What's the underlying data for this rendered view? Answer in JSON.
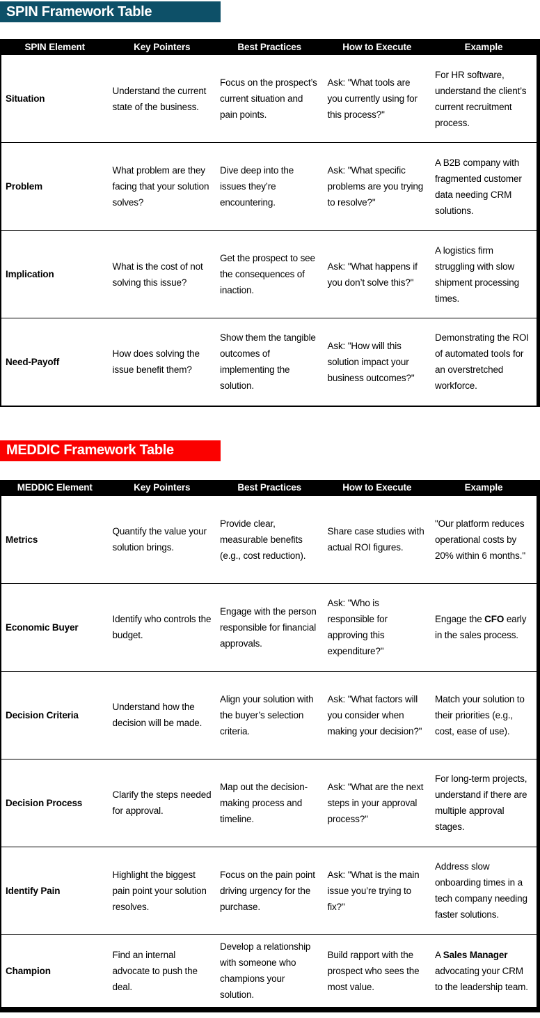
{
  "colors": {
    "spin_title_bg": "#0d5068",
    "meddic_title_bg": "#fb0100",
    "table_header_bg": "#000000",
    "table_header_text": "#ffffff",
    "body_text": "#000000"
  },
  "spin": {
    "title": "SPIN Framework Table",
    "headers": [
      "SPIN Element",
      "Key Pointers",
      "Best Practices",
      "How to Execute",
      "Example"
    ],
    "rows": [
      {
        "element": "Situation",
        "pointers": "Understand the current state of the business.",
        "practices": "Focus on the prospect’s current situation and pain points.",
        "execute": "Ask: \"What tools are you currently using for this process?\"",
        "example": "For HR software, understand the client’s current recruitment process."
      },
      {
        "element": "Problem",
        "pointers": "What problem are they facing that your solution solves?",
        "practices": "Dive deep into the issues they’re encountering.",
        "execute": "Ask: \"What specific problems are you trying to resolve?\"",
        "example": "A B2B company with fragmented customer data needing CRM solutions."
      },
      {
        "element": "Implication",
        "pointers": "What is the cost of not solving this issue?",
        "practices": "Get the prospect to see the consequences of inaction.",
        "execute": "Ask: \"What happens if you don’t solve this?\"",
        "example": "A logistics firm struggling with slow shipment processing times."
      },
      {
        "element": "Need-Payoff",
        "pointers": "How does solving the issue benefit them?",
        "practices": "Show them the tangible outcomes of implementing the solution.",
        "execute": "Ask: \"How will this solution impact your business outcomes?\"",
        "example": "Demonstrating the ROI of automated tools for an overstretched workforce."
      }
    ]
  },
  "meddic": {
    "title": "MEDDIC Framework Table",
    "headers": [
      "MEDDIC Element",
      "Key Pointers",
      "Best Practices",
      "How to Execute",
      "Example"
    ],
    "rows": [
      {
        "element": "Metrics",
        "pointers": "Quantify the value your solution brings.",
        "practices": "Provide clear, measurable benefits (e.g., cost reduction).",
        "execute": "Share case studies with actual ROI figures.",
        "example": "\"Our platform reduces operational costs by 20% within 6 months.\""
      },
      {
        "element": "Economic Buyer",
        "pointers": "Identify who controls the budget.",
        "practices": "Engage with the person responsible for financial approvals.",
        "execute": "Ask: \"Who is responsible for approving this expenditure?\"",
        "example_rich": [
          {
            "text": "Engage the "
          },
          {
            "text": "CFO",
            "bold": true
          },
          {
            "text": " early in the sales process."
          }
        ]
      },
      {
        "element": "Decision Criteria",
        "pointers": "Understand how the decision will be made.",
        "practices": "Align your solution with the buyer’s selection criteria.",
        "execute": "Ask: \"What factors will you consider when making your decision?\"",
        "example": "Match your solution to their priorities (e.g., cost, ease of use)."
      },
      {
        "element": "Decision Process",
        "pointers": "Clarify the steps needed for approval.",
        "practices": "Map out the decision-making process and timeline.",
        "execute": "Ask: \"What are the next steps in your approval process?\"",
        "example": "For long-term projects, understand if there are multiple approval stages."
      },
      {
        "element": "Identify Pain",
        "pointers": "Highlight the biggest pain point your solution resolves.",
        "practices": "Focus on the pain point driving urgency for the purchase.",
        "execute": "Ask: \"What is the main issue you’re trying to fix?\"",
        "example": "Address slow onboarding times in a tech company needing faster solutions."
      },
      {
        "element": "Champion",
        "pointers": "Find an internal advocate to push the deal.",
        "practices": "Develop a relationship with someone who champions your solution.",
        "execute": "Build rapport with the prospect who sees the most value.",
        "example_rich": [
          {
            "text": "A "
          },
          {
            "text": "Sales Manager",
            "bold": true
          },
          {
            "text": " advocating your CRM to the leadership team."
          }
        ]
      }
    ]
  }
}
